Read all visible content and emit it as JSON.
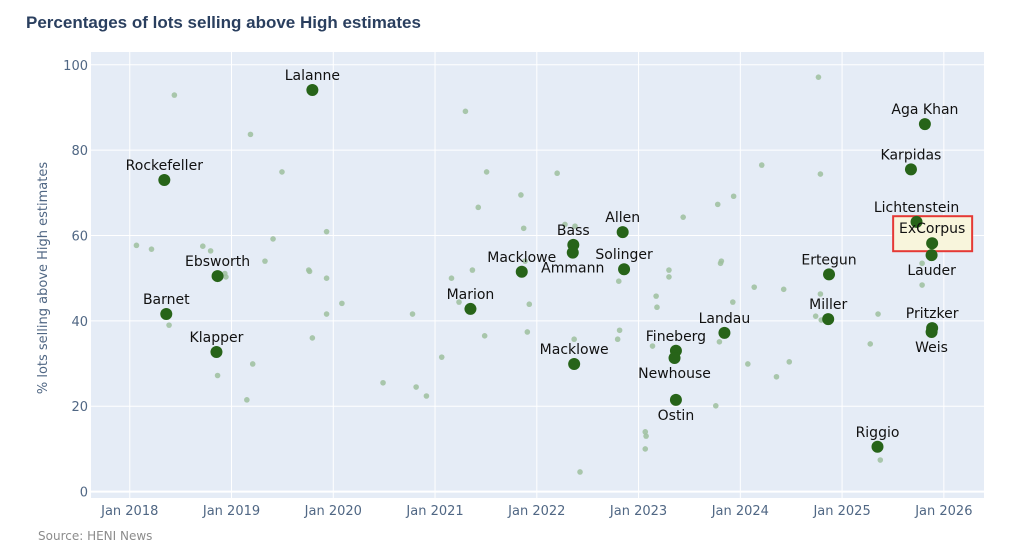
{
  "chart_data": {
    "type": "scatter",
    "title": "Percentages of lots selling above High estimates",
    "xlabel": "",
    "ylabel": "% lots selling above High estimates",
    "xlim": [
      "2017-08-15",
      "2026-05-25"
    ],
    "ylim": [
      -1.5,
      103
    ],
    "x_ticks": [
      "2018-01-01",
      "2019-01-01",
      "2020-01-01",
      "2021-01-01",
      "2022-01-01",
      "2023-01-01",
      "2024-01-01",
      "2025-01-01",
      "2026-01-01"
    ],
    "x_tick_labels": [
      "Jan 2018",
      "Jan 2019",
      "Jan 2020",
      "Jan 2021",
      "Jan 2022",
      "Jan 2023",
      "Jan 2024",
      "Jan 2025",
      "Jan 2026"
    ],
    "y_ticks": [
      0,
      20,
      40,
      60,
      80,
      100
    ],
    "y_tick_labels": [
      "0",
      "20",
      "40",
      "60",
      "80",
      "100"
    ],
    "grid": true,
    "legend": "none",
    "colors": {
      "plot_bg": "#e5ecf6",
      "highlight": "#276419",
      "other": "#9dbf9d",
      "box_fill": "#f8f5dc",
      "box_border": "#e53935"
    },
    "highlighted": [
      {
        "name": "Rockefeller",
        "date": "2018-05-05",
        "value": 73.0,
        "label_position": "top"
      },
      {
        "name": "Barnet",
        "date": "2018-05-12",
        "value": 41.6,
        "label_position": "top"
      },
      {
        "name": "Ebsworth",
        "date": "2018-11-12",
        "value": 50.5,
        "label_position": "top"
      },
      {
        "name": "Klapper",
        "date": "2018-11-08",
        "value": 32.7,
        "label_position": "top"
      },
      {
        "name": "Lalanne",
        "date": "2019-10-18",
        "value": 94.1,
        "label_position": "top"
      },
      {
        "name": "Marion",
        "date": "2021-05-08",
        "value": 42.8,
        "label_position": "top"
      },
      {
        "name": "Macklowe",
        "date": "2021-11-08",
        "value": 51.5,
        "label_position": "top"
      },
      {
        "name": "Bass",
        "date": "2022-05-12",
        "value": 57.8,
        "label_position": "top"
      },
      {
        "name": "Ammann",
        "date": "2022-05-10",
        "value": 56.0,
        "label_position": "bottom"
      },
      {
        "name": "Macklowe",
        "date": "2022-05-15",
        "value": 29.9,
        "label_position": "top"
      },
      {
        "name": "Allen",
        "date": "2022-11-05",
        "value": 60.8,
        "label_position": "top"
      },
      {
        "name": "Solinger",
        "date": "2022-11-10",
        "value": 52.1,
        "label_position": "top"
      },
      {
        "name": "Fineberg",
        "date": "2023-05-15",
        "value": 33.0,
        "label_position": "top"
      },
      {
        "name": "Newhouse",
        "date": "2023-05-10",
        "value": 31.3,
        "label_position": "bottom"
      },
      {
        "name": "Ostin",
        "date": "2023-05-15",
        "value": 21.5,
        "label_position": "bottom"
      },
      {
        "name": "Landau",
        "date": "2023-11-05",
        "value": 37.2,
        "label_position": "top"
      },
      {
        "name": "Ertegun",
        "date": "2024-11-15",
        "value": 50.9,
        "label_position": "top"
      },
      {
        "name": "Miller",
        "date": "2024-11-12",
        "value": 40.4,
        "label_position": "top"
      },
      {
        "name": "Riggio",
        "date": "2025-05-08",
        "value": 10.5,
        "label_position": "top"
      },
      {
        "name": "Karpidas",
        "date": "2025-09-05",
        "value": 75.5,
        "label_position": "top"
      },
      {
        "name": "Lichtenstein",
        "date": "2025-09-25",
        "value": 63.2,
        "label_position": "top"
      },
      {
        "name": "Aga Khan",
        "date": "2025-10-25",
        "value": 86.1,
        "label_position": "top"
      },
      {
        "name": "ExCorpus",
        "date": "2025-11-20",
        "value": 58.2,
        "label_position": "top",
        "boxed": true
      },
      {
        "name": "Lauder",
        "date": "2025-11-18",
        "value": 55.4,
        "label_position": "bottom"
      },
      {
        "name": "Pritzker",
        "date": "2025-11-20",
        "value": 38.3,
        "label_position": "top"
      },
      {
        "name": "Weis",
        "date": "2025-11-18",
        "value": 37.4,
        "label_position": "bottom"
      }
    ],
    "others": [
      [
        "2018-01-25",
        57.7
      ],
      [
        "2018-03-20",
        56.8
      ],
      [
        "2018-05-22",
        39.0
      ],
      [
        "2018-06-10",
        92.9
      ],
      [
        "2018-09-20",
        57.5
      ],
      [
        "2018-10-18",
        56.4
      ],
      [
        "2018-11-12",
        27.2
      ],
      [
        "2018-12-08",
        51.1
      ],
      [
        "2018-12-12",
        50.3
      ],
      [
        "2019-02-25",
        21.5
      ],
      [
        "2019-03-10",
        83.7
      ],
      [
        "2019-03-18",
        29.9
      ],
      [
        "2019-05-01",
        54.0
      ],
      [
        "2019-05-30",
        59.2
      ],
      [
        "2019-07-01",
        74.9
      ],
      [
        "2019-10-05",
        51.9
      ],
      [
        "2019-10-08",
        51.6
      ],
      [
        "2019-10-18",
        36.0
      ],
      [
        "2019-12-08",
        60.9
      ],
      [
        "2019-12-08",
        50.0
      ],
      [
        "2019-12-08",
        41.6
      ],
      [
        "2020-02-01",
        44.1
      ],
      [
        "2020-06-28",
        25.5
      ],
      [
        "2020-10-12",
        41.6
      ],
      [
        "2020-10-25",
        24.5
      ],
      [
        "2020-12-01",
        22.4
      ],
      [
        "2021-01-25",
        31.5
      ],
      [
        "2021-03-01",
        50.0
      ],
      [
        "2021-03-28",
        44.4
      ],
      [
        "2021-04-20",
        89.1
      ],
      [
        "2021-05-15",
        51.9
      ],
      [
        "2021-06-05",
        66.6
      ],
      [
        "2021-06-28",
        36.5
      ],
      [
        "2021-07-05",
        74.9
      ],
      [
        "2021-11-05",
        69.5
      ],
      [
        "2021-11-15",
        61.7
      ],
      [
        "2021-11-20",
        54.0
      ],
      [
        "2021-11-28",
        37.4
      ],
      [
        "2021-12-05",
        43.9
      ],
      [
        "2022-03-15",
        74.6
      ],
      [
        "2022-04-12",
        62.6
      ],
      [
        "2022-05-18",
        62.2
      ],
      [
        "2022-05-15",
        35.7
      ],
      [
        "2022-06-05",
        4.6
      ],
      [
        "2022-10-18",
        35.7
      ],
      [
        "2022-10-25",
        37.8
      ],
      [
        "2022-10-22",
        49.3
      ],
      [
        "2023-01-25",
        14.0
      ],
      [
        "2023-01-28",
        13.0
      ],
      [
        "2023-01-25",
        10.0
      ],
      [
        "2023-02-20",
        34.1
      ],
      [
        "2023-03-05",
        45.8
      ],
      [
        "2023-03-08",
        43.2
      ],
      [
        "2023-04-20",
        51.9
      ],
      [
        "2023-04-20",
        50.3
      ],
      [
        "2023-06-10",
        64.3
      ],
      [
        "2023-10-05",
        20.1
      ],
      [
        "2023-10-12",
        67.3
      ],
      [
        "2023-10-18",
        35.1
      ],
      [
        "2023-10-25",
        54.0
      ],
      [
        "2023-10-22",
        53.5
      ],
      [
        "2023-12-08",
        69.2
      ],
      [
        "2023-12-05",
        44.4
      ],
      [
        "2024-01-28",
        29.9
      ],
      [
        "2024-02-20",
        47.9
      ],
      [
        "2024-03-18",
        76.5
      ],
      [
        "2024-05-10",
        26.9
      ],
      [
        "2024-06-05",
        47.4
      ],
      [
        "2024-06-25",
        30.4
      ],
      [
        "2024-09-28",
        41.1
      ],
      [
        "2024-10-08",
        97.1
      ],
      [
        "2024-10-15",
        74.4
      ],
      [
        "2024-10-15",
        46.3
      ],
      [
        "2024-10-18",
        40.2
      ],
      [
        "2025-04-12",
        34.6
      ],
      [
        "2025-05-10",
        41.6
      ],
      [
        "2025-05-18",
        7.4
      ],
      [
        "2025-10-15",
        48.4
      ],
      [
        "2025-10-15",
        53.5
      ]
    ]
  },
  "footer": {
    "source": "Source: HENI News"
  }
}
